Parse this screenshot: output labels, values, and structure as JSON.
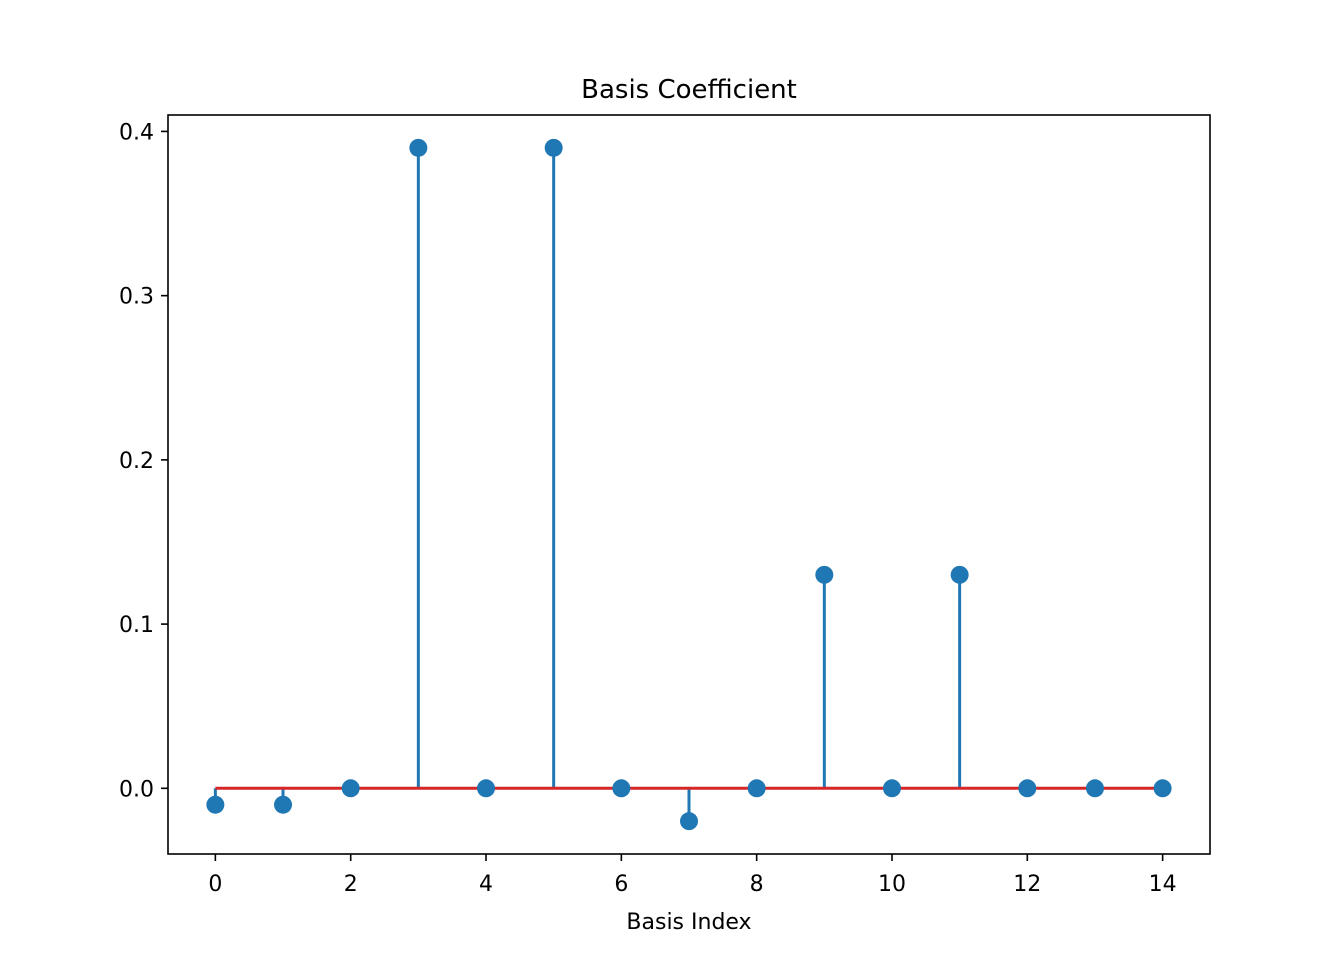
{
  "chart_data": {
    "type": "stem",
    "title": "Basis Coefficient",
    "xlabel": "Basis Index",
    "ylabel": "",
    "x": [
      0,
      1,
      2,
      3,
      4,
      5,
      6,
      7,
      8,
      9,
      10,
      11,
      12,
      13,
      14
    ],
    "values": [
      -0.01,
      -0.01,
      0.0,
      0.39,
      0.0,
      0.39,
      0.0,
      -0.02,
      0.0,
      0.13,
      0.0,
      0.13,
      0.0,
      0.0,
      0.0
    ],
    "xlim": [
      -0.7,
      14.7
    ],
    "ylim": [
      -0.04,
      0.41
    ],
    "xticks": [
      0,
      2,
      4,
      6,
      8,
      10,
      12,
      14
    ],
    "xtick_labels": [
      "0",
      "2",
      "4",
      "6",
      "8",
      "10",
      "12",
      "14"
    ],
    "yticks": [
      0.0,
      0.1,
      0.2,
      0.3,
      0.4
    ],
    "ytick_labels": [
      "0.0",
      "0.1",
      "0.2",
      "0.3",
      "0.4"
    ],
    "baseline": 0.0,
    "grid": false,
    "legend": "none",
    "colors": {
      "stem": "#1f77b4",
      "marker": "#1f77b4",
      "baseline": "#d62728"
    }
  }
}
